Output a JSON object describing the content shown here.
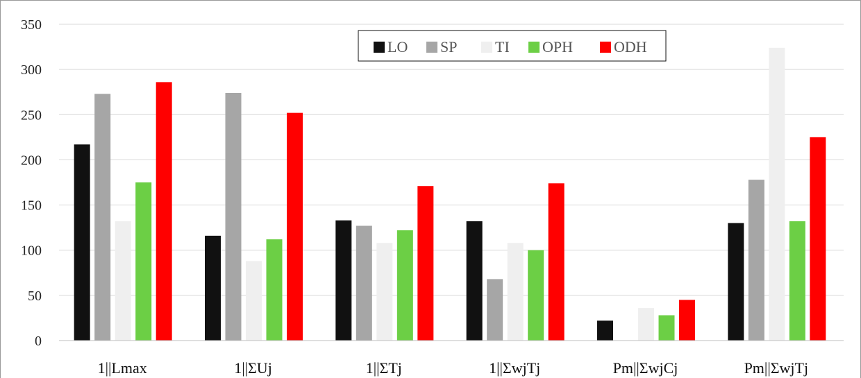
{
  "chart_data": {
    "type": "bar",
    "title": "",
    "xlabel": "",
    "ylabel": "",
    "ylim": [
      0,
      350
    ],
    "yticks": [
      0,
      50,
      100,
      150,
      200,
      250,
      300,
      350
    ],
    "grid": true,
    "legend_position": "top-center",
    "categories": [
      "1||Lmax",
      "1||ΣUj",
      "1||ΣTj",
      "1||ΣwjTj",
      "Pm||ΣwjCj",
      "Pm||ΣwjTj"
    ],
    "series": [
      {
        "name": "LO",
        "color": "#111111",
        "values": [
          217,
          116,
          133,
          132,
          22,
          130
        ]
      },
      {
        "name": "SP",
        "color": "#a6a6a6",
        "values": [
          273,
          274,
          127,
          68,
          0,
          178
        ]
      },
      {
        "name": "TI",
        "color": "#efefef",
        "values": [
          132,
          88,
          108,
          108,
          36,
          324
        ]
      },
      {
        "name": "OPH",
        "color": "#6ccf45",
        "values": [
          175,
          112,
          122,
          100,
          28,
          132
        ]
      },
      {
        "name": "ODH",
        "color": "#ff0000",
        "values": [
          286,
          252,
          171,
          174,
          45,
          225
        ]
      }
    ]
  }
}
